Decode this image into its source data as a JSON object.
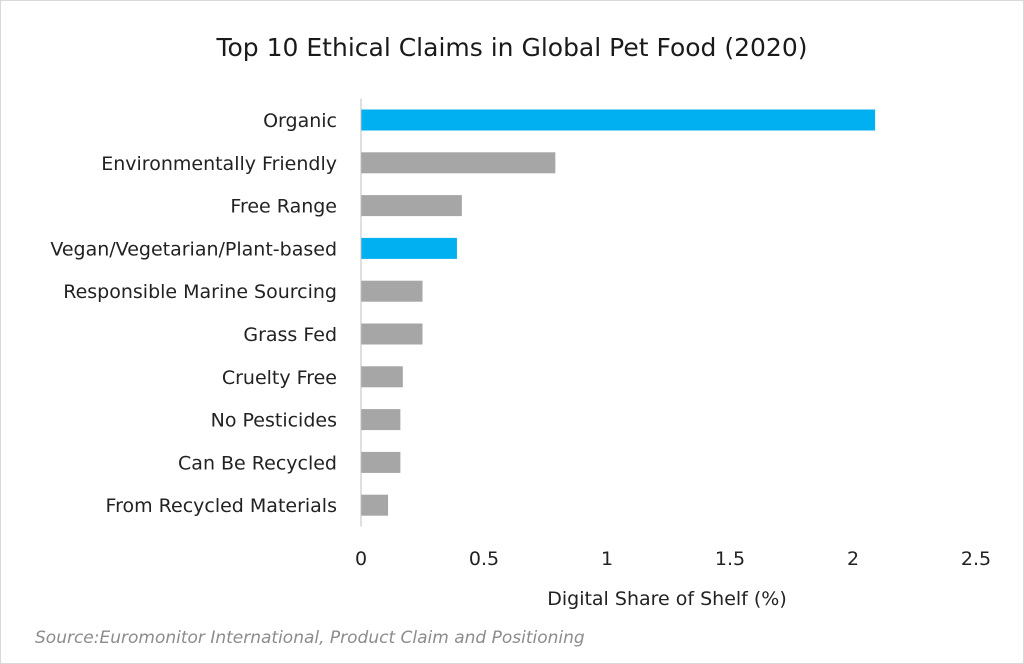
{
  "chart_data": {
    "type": "bar",
    "orientation": "horizontal",
    "title": "Top 10 Ethical Claims in Global Pet Food (2020)",
    "xlabel": "Digital Share of Shelf (%)",
    "ylabel": "",
    "xlim": [
      0,
      2.5
    ],
    "x_ticks": [
      "0",
      "0.5",
      "1",
      "1.5",
      "2",
      "2.5"
    ],
    "x_tick_values": [
      0,
      0.5,
      1,
      1.5,
      2,
      2.5
    ],
    "grid": false,
    "legend": "none",
    "categories": [
      "Organic",
      "Environmentally Friendly",
      "Free Range",
      "Vegan/Vegetarian/Plant-based",
      "Responsible Marine Sourcing",
      "Grass Fed",
      "Cruelty Free",
      "No Pesticides",
      "Can Be Recycled",
      "From Recycled Materials"
    ],
    "values": [
      2.09,
      0.79,
      0.41,
      0.39,
      0.25,
      0.25,
      0.17,
      0.16,
      0.16,
      0.11
    ],
    "bar_colors": [
      "#00b0f0",
      "#a6a6a6",
      "#a6a6a6",
      "#00b0f0",
      "#a6a6a6",
      "#a6a6a6",
      "#a6a6a6",
      "#a6a6a6",
      "#a6a6a6",
      "#a6a6a6"
    ],
    "source": "Source:Euromonitor International, Product Claim and Positioning"
  }
}
